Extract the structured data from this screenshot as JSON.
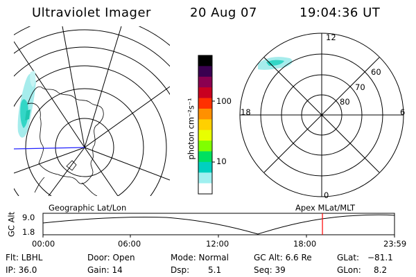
{
  "header": {
    "instrument": "Ultraviolet Imager",
    "date": "20 Aug 07",
    "time": "19:04:36 UT"
  },
  "left_map": {
    "caption": "Geographic Lat/Lon"
  },
  "right_map": {
    "caption": "Apex MLat/MLT",
    "mlt_labels": {
      "top": "12",
      "left": "18",
      "right": "6",
      "bottom": "0"
    },
    "lat_labels": [
      "60",
      "70",
      "80"
    ]
  },
  "colorbar": {
    "unit": "photon cm⁻²s⁻¹",
    "ticks": [
      "100",
      "10"
    ],
    "scale": "log",
    "colors": [
      "#000000",
      "#3a0050",
      "#8a0050",
      "#c80020",
      "#ff3000",
      "#ff9000",
      "#ffd000",
      "#e8ff00",
      "#80ff00",
      "#00e060",
      "#00d0c0",
      "#a0f0f0",
      "#ffffff"
    ]
  },
  "altitude_plot": {
    "ylabel": "GC Alt",
    "yticks": [
      "9.0",
      "1.8"
    ],
    "xticks": [
      "00:00",
      "06:00",
      "12:00",
      "18:00",
      "23:59"
    ],
    "marker_time_fraction": 0.795,
    "marker_color": "#ff0000"
  },
  "status": {
    "flt": "Flt: LBHL",
    "ip": "IP: 36.0",
    "door": "Door: Open",
    "gain": "Gain: 14",
    "mode": "Mode: Normal",
    "dsp_label": "Dsp:",
    "dsp_value": "5.1",
    "gc_alt": "GC Alt: 6.6 Re",
    "seq": "Seq: 39",
    "glat_label": "GLat:",
    "glat_value": "−81.1",
    "glon_label": "GLon:",
    "glon_value": "8.2"
  }
}
